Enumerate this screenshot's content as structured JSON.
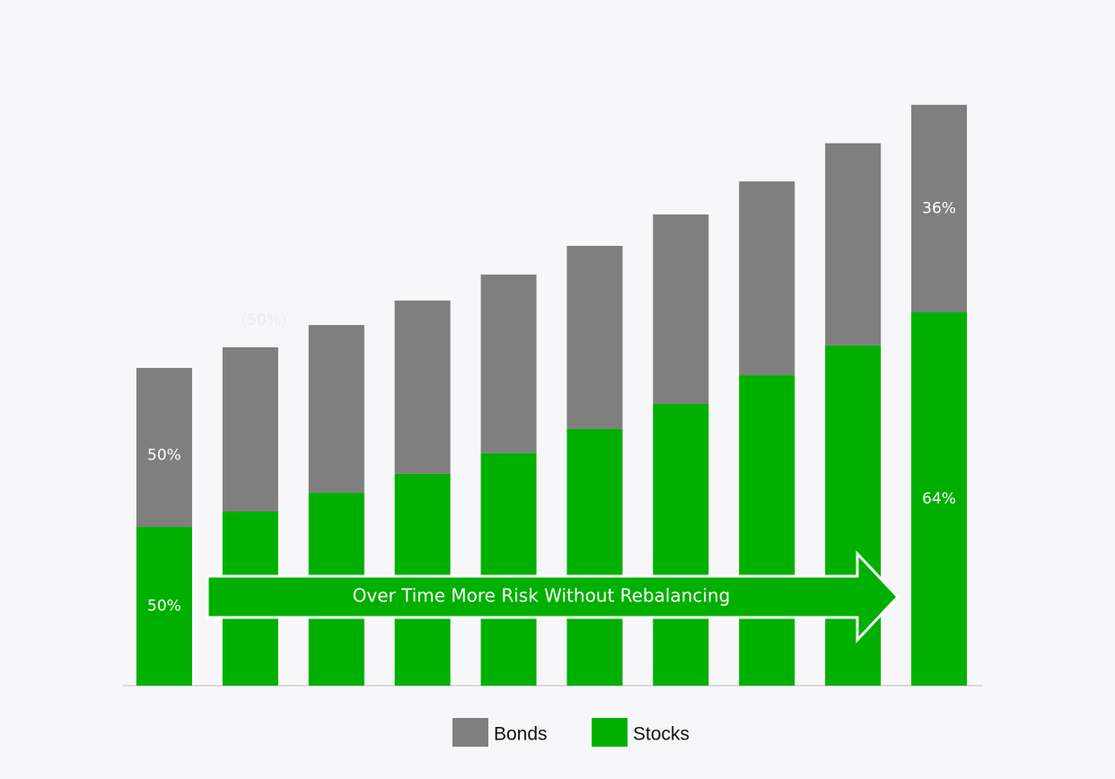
{
  "chart_data": {
    "type": "stacked-bar",
    "categories": [
      null,
      null,
      null,
      null,
      null,
      null,
      null,
      null,
      null,
      null
    ],
    "series": [
      {
        "name": "Stocks",
        "color": "#00b000",
        "values": [
          50,
          54.8,
          60.7,
          66.7,
          73.2,
          80.8,
          88.7,
          97.7,
          107.1,
          117.5
        ],
        "labels": [
          "50%",
          null,
          null,
          null,
          null,
          null,
          null,
          null,
          null,
          "64%"
        ]
      },
      {
        "name": "Bonds",
        "color": "#7f7f7f",
        "values": [
          50,
          51.7,
          52.8,
          54.5,
          56.2,
          57.6,
          59.6,
          61.0,
          63.6,
          65.3
        ],
        "labels": [
          "50%",
          null,
          null,
          null,
          null,
          null,
          null,
          null,
          null,
          "36%"
        ]
      }
    ],
    "ylim": [
      0,
      185
    ],
    "annotations": [
      "(50%)",
      "Over Time More Risk Without Rebalancing"
    ]
  }
}
